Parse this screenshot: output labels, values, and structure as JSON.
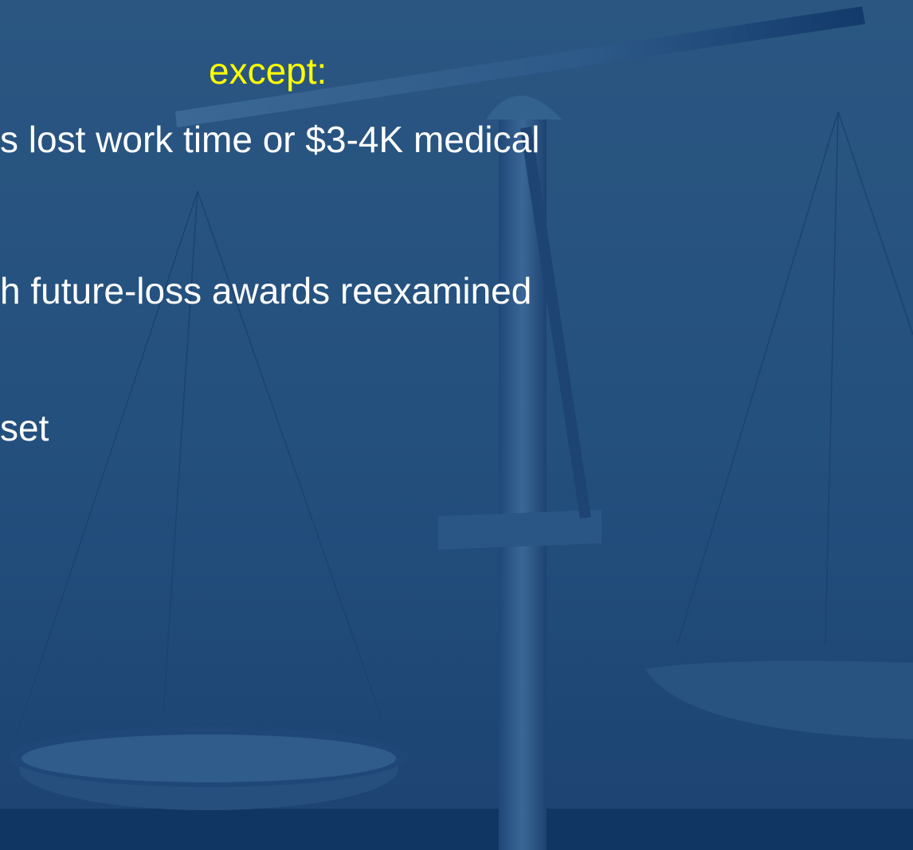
{
  "slide": {
    "heading": "except:",
    "bullets": [
      "s lost work time or $3-4K medical",
      "h future-loss awards reexamined",
      "set"
    ]
  }
}
